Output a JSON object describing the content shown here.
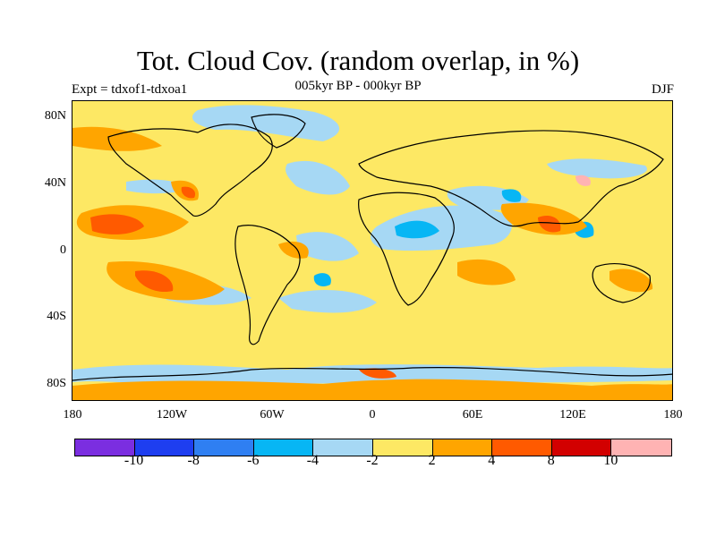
{
  "title": "Tot. Cloud Cov. (random overlap, in %)",
  "subtitle": "005kyr BP - 000kyr BP",
  "left_label": "Expt = tdxof1-tdxoa1",
  "right_label": "DJF",
  "y_ticks": [
    "80N",
    "40N",
    "0",
    "40S",
    "80S"
  ],
  "x_ticks": [
    "180",
    "120W",
    "60W",
    "0",
    "60E",
    "120E",
    "180"
  ],
  "colorbar": {
    "colors": [
      "#7b2ee0",
      "#1e3ef0",
      "#2f7ff2",
      "#07b6f4",
      "#a6d8f4",
      "#fde864",
      "#ffa500",
      "#ff5a00",
      "#d20000",
      "#ffb3b3"
    ],
    "labels": [
      "-10",
      "-8",
      "-6",
      "-4",
      "-2",
      "2",
      "4",
      "8",
      "10"
    ]
  },
  "colors": {
    "background": "#fde864",
    "positive_moderate": "#ffa500",
    "positive_strong": "#ff5a00",
    "negative_weak": "#a6d8f4",
    "negative_moderate": "#07b6f4",
    "coastline": "#000000"
  }
}
